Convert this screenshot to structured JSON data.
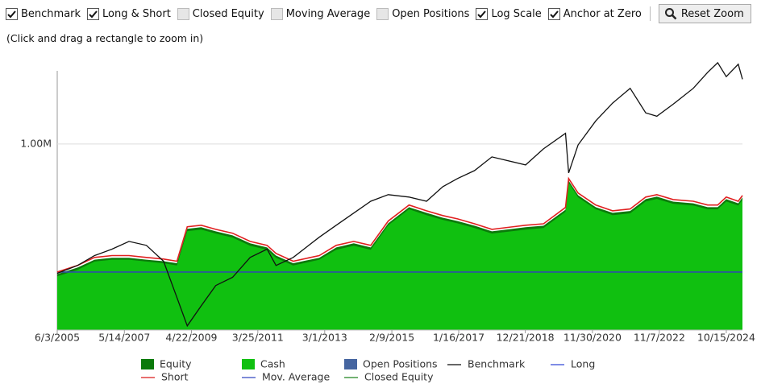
{
  "toolbar": {
    "options": [
      {
        "label": "Benchmark",
        "checked": true
      },
      {
        "label": "Long & Short",
        "checked": true
      },
      {
        "label": "Closed Equity",
        "checked": false
      },
      {
        "label": "Moving Average",
        "checked": false
      },
      {
        "label": "Open Positions",
        "checked": false
      },
      {
        "label": "Log Scale",
        "checked": true
      },
      {
        "label": "Anchor at Zero",
        "checked": true
      }
    ],
    "button": "Reset Zoom"
  },
  "hint": "(Click and drag a rectangle to zoom in)",
  "chart_data": {
    "type": "line",
    "log_scale": true,
    "grid": true,
    "x": [
      "6/3/2005",
      "1/3/2006",
      "7/3/2006",
      "1/3/2007",
      "7/2/2007",
      "1/2/2008",
      "7/1/2008",
      "11/20/2008",
      "3/9/2009",
      "8/3/2009",
      "1/4/2010",
      "7/1/2010",
      "1/3/2011",
      "7/1/2011",
      "10/3/2011",
      "4/2/2012",
      "1/2/2013",
      "7/1/2013",
      "1/2/2014",
      "7/1/2014",
      "1/2/2015",
      "8/10/2015",
      "2/11/2016",
      "8/1/2016",
      "1/3/2017",
      "7/3/2017",
      "1/2/2018",
      "12/24/2018",
      "7/1/2019",
      "2/19/2020",
      "3/23/2020",
      "7/1/2020",
      "1/4/2021",
      "7/1/2021",
      "1/3/2022",
      "6/16/2022",
      "10/12/2022",
      "4/3/2023",
      "11/1/2023",
      "4/1/2024",
      "7/16/2024",
      "10/15/2024",
      "2/19/2025",
      "4/4/2025"
    ],
    "xlim": [
      "6/3/2005",
      "4/4/2025"
    ],
    "xticks": [
      "6/3/2005",
      "5/14/2007",
      "4/22/2009",
      "3/25/2011",
      "3/1/2013",
      "2/9/2015",
      "1/16/2017",
      "12/21/2018",
      "11/30/2020",
      "11/7/2022",
      "10/15/2024"
    ],
    "ylim": [
      264000,
      1820000
    ],
    "yticks": [
      {
        "value": 1000000,
        "label": "1.00M"
      }
    ],
    "series": [
      {
        "name": "Equity",
        "color": "#0b7a0b",
        "kind": "area",
        "values": [
          394000,
          413000,
          437000,
          443000,
          443000,
          437000,
          432000,
          426000,
          545000,
          551000,
          535000,
          520000,
          491000,
          477000,
          450000,
          426000,
          443000,
          477000,
          491000,
          477000,
          567000,
          636000,
          611000,
          590000,
          576000,
          557000,
          535000,
          551000,
          557000,
          625000,
          769000,
          693000,
          636000,
          611000,
          619000,
          674000,
          686000,
          662000,
          654000,
          636000,
          636000,
          674000,
          654000,
          682000
        ]
      },
      {
        "name": "Cash",
        "color": "#10c010",
        "kind": "area",
        "values": [
          388000,
          406000,
          431000,
          437000,
          437000,
          431000,
          426000,
          419000,
          536000,
          542000,
          527000,
          512000,
          483000,
          469000,
          443000,
          419000,
          437000,
          469000,
          483000,
          469000,
          559000,
          627000,
          601000,
          581000,
          567000,
          548000,
          527000,
          542000,
          548000,
          616000,
          758000,
          683000,
          627000,
          601000,
          609000,
          663000,
          675000,
          652000,
          644000,
          627000,
          627000,
          663000,
          644000,
          671000
        ]
      },
      {
        "name": "Long",
        "color": "#2e4fa8",
        "kind": "line",
        "values": [
          400000,
          400000,
          400000,
          400000,
          400000,
          400000,
          400000,
          400000,
          400000,
          400000,
          400000,
          400000,
          400000,
          400000,
          400000,
          400000,
          400000,
          400000,
          400000,
          400000,
          400000,
          400000,
          400000,
          400000,
          400000,
          400000,
          400000,
          400000,
          400000,
          400000,
          400000,
          400000,
          400000,
          400000,
          400000,
          400000,
          400000,
          400000,
          400000,
          400000,
          400000,
          400000,
          400000,
          400000
        ]
      },
      {
        "name": "Short",
        "color": "#e02020",
        "kind": "line",
        "values": [
          400000,
          419000,
          444000,
          450000,
          450000,
          444000,
          439000,
          432000,
          553000,
          559000,
          543000,
          528000,
          498000,
          484000,
          457000,
          432000,
          450000,
          484000,
          498000,
          484000,
          576000,
          646000,
          620000,
          599000,
          585000,
          565000,
          543000,
          559000,
          565000,
          635000,
          781000,
          704000,
          646000,
          620000,
          628000,
          684000,
          696000,
          672000,
          664000,
          646000,
          646000,
          684000,
          664000,
          692000
        ]
      },
      {
        "name": "Benchmark",
        "color": "#111111",
        "kind": "line",
        "values": [
          396000,
          419000,
          450000,
          471000,
          498000,
          484000,
          432000,
          333000,
          272000,
          314000,
          363000,
          385000,
          444000,
          471000,
          419000,
          444000,
          513000,
          559000,
          610000,
          664000,
          696000,
          684000,
          664000,
          737000,
          781000,
          827000,
          912000,
          861000,
          966000,
          1080000,
          813000,
          994000,
          1180000,
          1340000,
          1490000,
          1250000,
          1220000,
          1330000,
          1490000,
          1670000,
          1790000,
          1620000,
          1770000,
          1590000
        ]
      }
    ],
    "legend": [
      {
        "name": "Equity",
        "color": "#0b7a0b",
        "kind": "area"
      },
      {
        "name": "Cash",
        "color": "#10c010",
        "kind": "area"
      },
      {
        "name": "Open Positions",
        "color": "#4565a0",
        "kind": "area"
      },
      {
        "name": "Benchmark",
        "color": "#333333",
        "kind": "line"
      },
      {
        "name": "Long",
        "color": "#5566dd",
        "kind": "line"
      },
      {
        "name": "Short",
        "color": "#e04040",
        "kind": "line"
      },
      {
        "name": "Mov. Average",
        "color": "#5566cc",
        "kind": "line"
      },
      {
        "name": "Closed Equity",
        "color": "#449944",
        "kind": "line"
      }
    ]
  }
}
